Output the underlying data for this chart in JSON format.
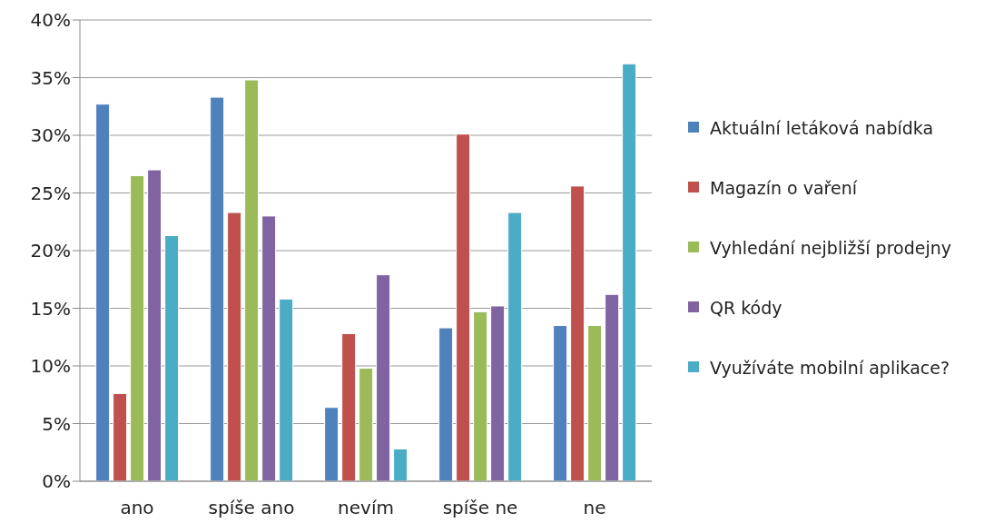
{
  "chart_data": {
    "type": "bar",
    "categories": [
      "ano",
      "spíše ano",
      "nevím",
      "spíše ne",
      "ne"
    ],
    "series": [
      {
        "name": "Aktuální letáková nabídka",
        "color": "#4f81bd",
        "values": [
          32.7,
          33.3,
          6.4,
          13.3,
          13.5
        ]
      },
      {
        "name": "Magazín o vaření",
        "color": "#c0504d",
        "values": [
          7.6,
          23.3,
          12.8,
          30.1,
          25.6
        ]
      },
      {
        "name": "Vyhledání nejbližší prodejny",
        "color": "#9bbb59",
        "values": [
          26.5,
          34.8,
          9.8,
          14.7,
          13.5
        ]
      },
      {
        "name": "QR kódy",
        "color": "#8064a2",
        "values": [
          27.0,
          23.0,
          17.9,
          15.2,
          16.2
        ]
      },
      {
        "name": "Využíváte mobilní aplikace?",
        "color": "#4bacc6",
        "values": [
          21.3,
          15.8,
          2.8,
          23.3,
          36.2
        ]
      }
    ],
    "ylim": [
      0,
      40
    ],
    "yticks": [
      {
        "value": 0,
        "label": "0%"
      },
      {
        "value": 5,
        "label": "5%"
      },
      {
        "value": 10,
        "label": "10%"
      },
      {
        "value": 15,
        "label": "15%"
      },
      {
        "value": 20,
        "label": "20%"
      },
      {
        "value": 25,
        "label": "25%"
      },
      {
        "value": 30,
        "label": "30%"
      },
      {
        "value": 35,
        "label": "35%"
      },
      {
        "value": 40,
        "label": "40%"
      }
    ],
    "grid": "y",
    "legend": "right"
  }
}
